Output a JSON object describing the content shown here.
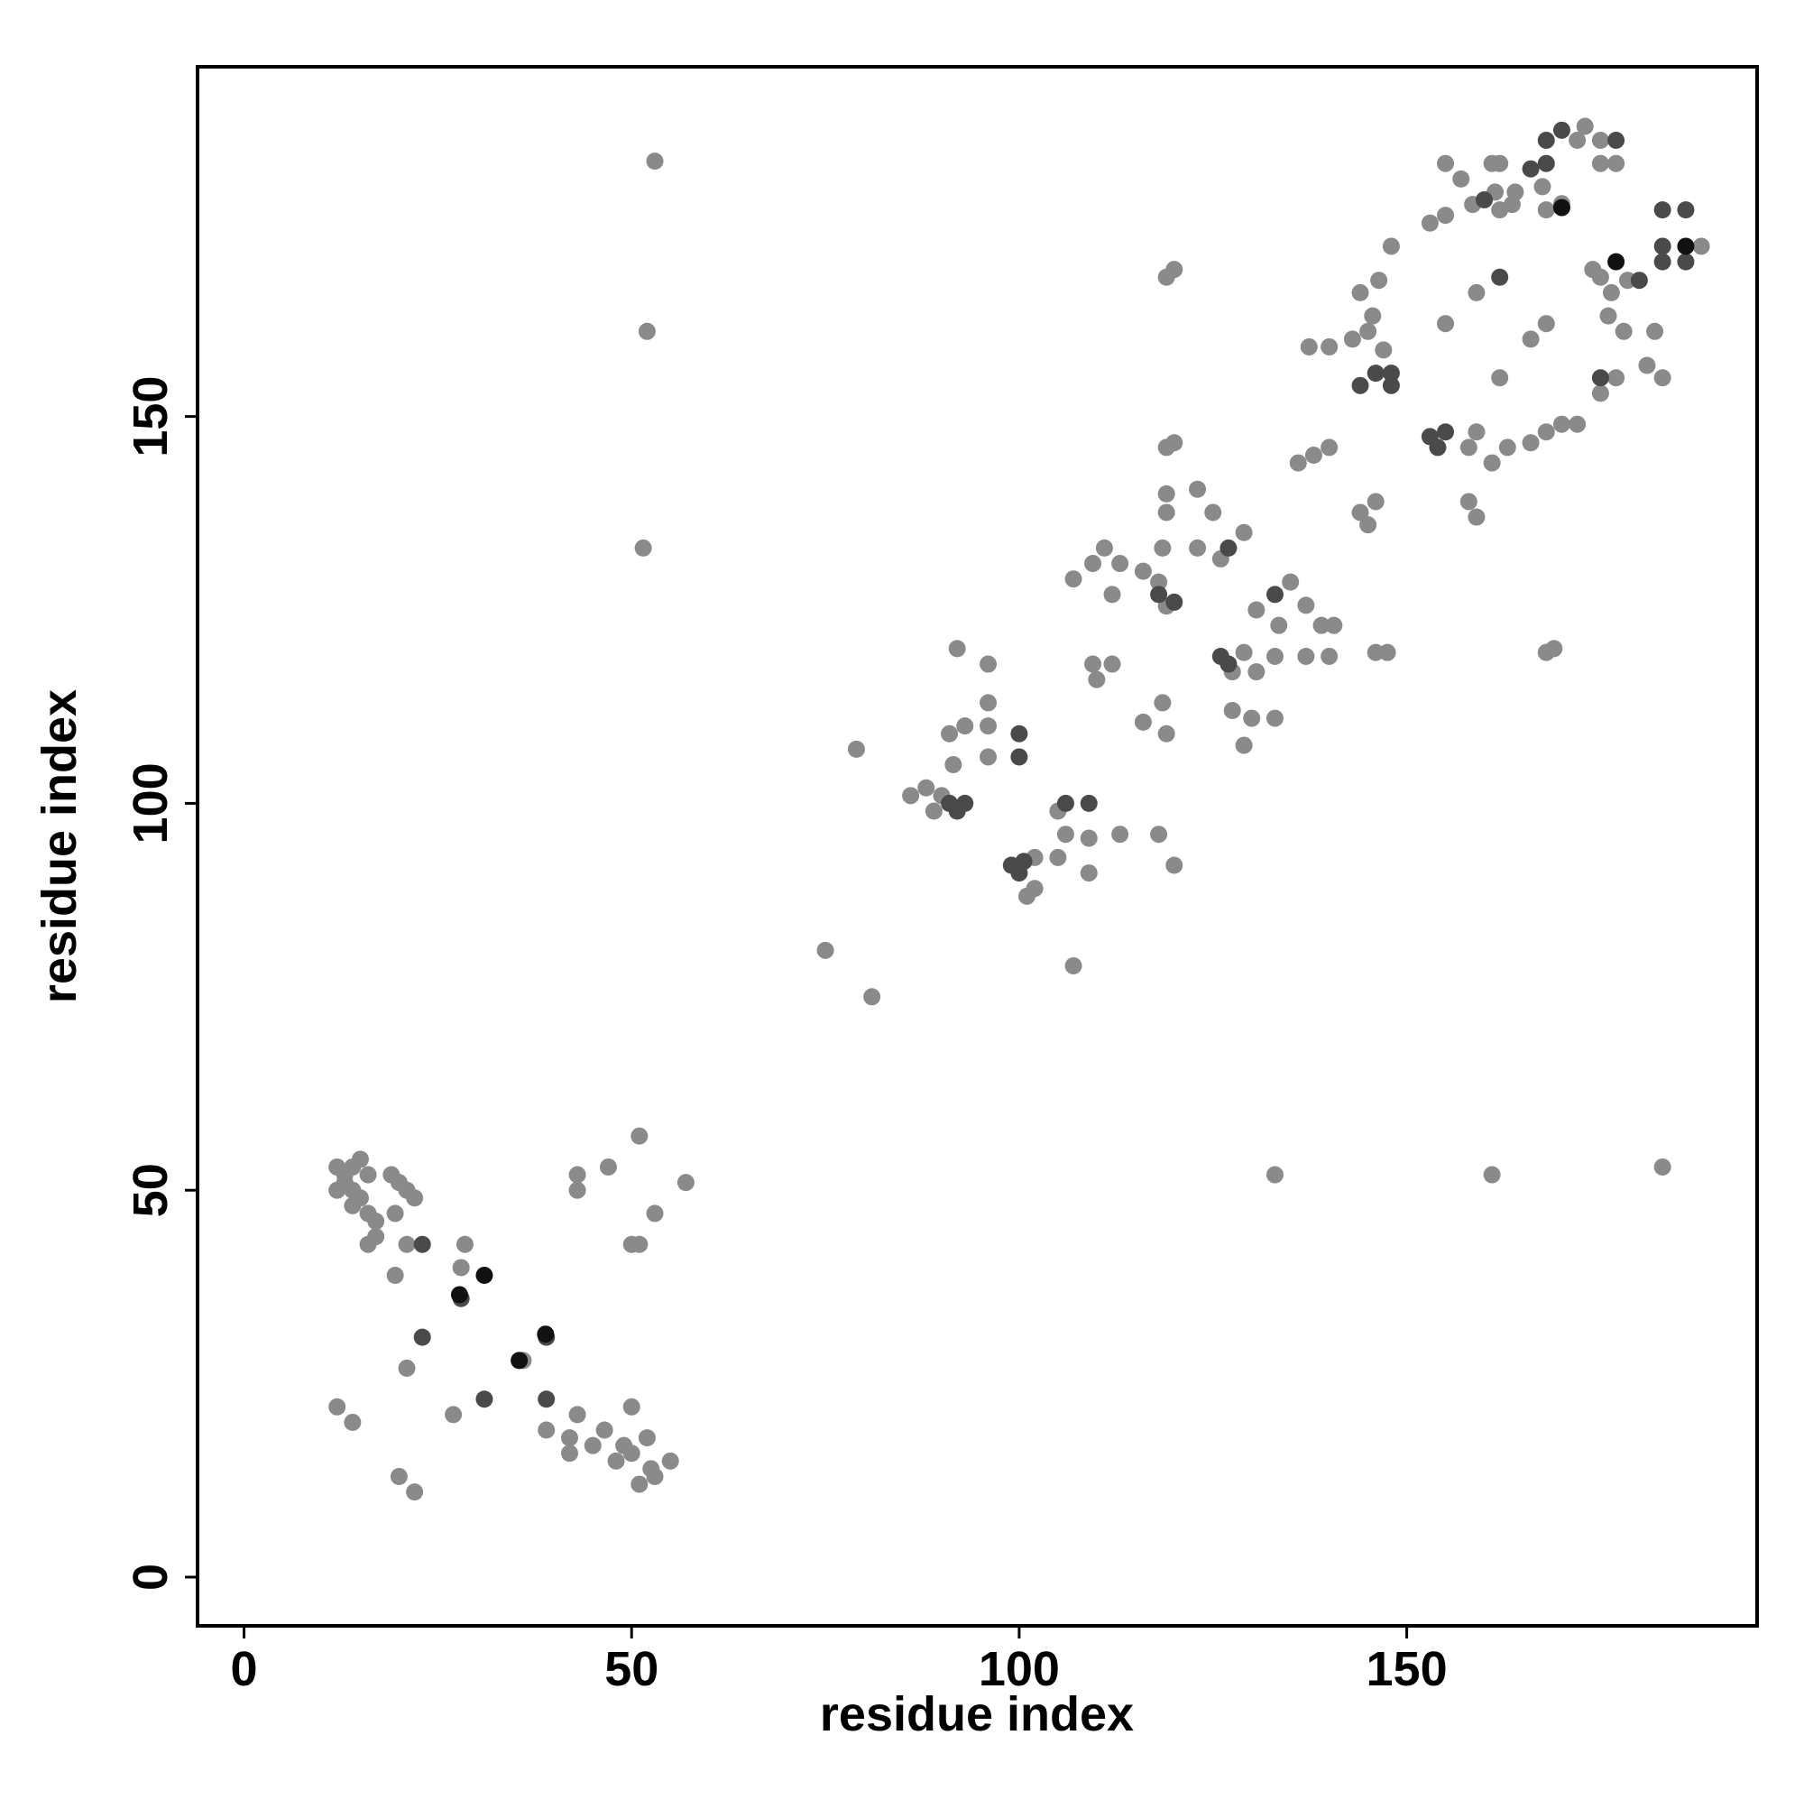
{
  "chart_data": {
    "type": "scatter",
    "x_label": "residue index",
    "y_label": "residue index",
    "xlim": [
      -6,
      195.2
    ],
    "ylim": [
      -6.3,
      195.2
    ],
    "xticks": [
      0,
      50,
      100,
      150
    ],
    "yticks": [
      0,
      50,
      100,
      150
    ],
    "series": [
      {
        "color": "#8a8a8a",
        "x": [
          12,
          13,
          13,
          14,
          12,
          14,
          15,
          16,
          15,
          14,
          16,
          17,
          17,
          16,
          19,
          20,
          21,
          22,
          19.5,
          21,
          19.5,
          28.5,
          28,
          36,
          21,
          27,
          39,
          43,
          42,
          46.5,
          50,
          50,
          52.5,
          55,
          51,
          20,
          22,
          12,
          14,
          43,
          43,
          47,
          51,
          51,
          53,
          57,
          50,
          48,
          49,
          52,
          53,
          45,
          42,
          53,
          52,
          51.5,
          75,
          81,
          79,
          107,
          133,
          161,
          183,
          86,
          88,
          89,
          90,
          91,
          93,
          96,
          91.5,
          96,
          96,
          96,
          92,
          102,
          101,
          102,
          105,
          105,
          106,
          109,
          109,
          113,
          118,
          120,
          109.5,
          112,
          110,
          107,
          109.5,
          111,
          113,
          112,
          116,
          118,
          119,
          118.5,
          116,
          118.5,
          119,
          119,
          119,
          119,
          120,
          119,
          120,
          123,
          125,
          126,
          129,
          123,
          127.5,
          129,
          130.6,
          133,
          127.5,
          130,
          133,
          129,
          130.6,
          135,
          137,
          139,
          140.6,
          137,
          140,
          133.5,
          136,
          138,
          140,
          144,
          146,
          145,
          146,
          147.5,
          137.4,
          140,
          143,
          145,
          147,
          145.6,
          144,
          146.4,
          148,
          153,
          155,
          155,
          157,
          155,
          159,
          162,
          158,
          159,
          161,
          163,
          158,
          159,
          166,
          168,
          170,
          172,
          168,
          169,
          161,
          162,
          162,
          164,
          167.5,
          168,
          172,
          173,
          175,
          175,
          177,
          174,
          176.4,
          178.5,
          176,
          178,
          182,
          181,
          183,
          175,
          177,
          168,
          166,
          163.6,
          161.4,
          158.5,
          188,
          170,
          175
        ],
        "values": [
          53,
          52,
          51,
          50,
          50,
          53,
          54,
          52,
          49,
          48,
          47,
          46,
          44,
          43,
          52,
          51,
          50,
          49,
          47,
          43,
          39,
          43,
          40,
          28,
          27,
          21,
          19,
          21,
          16,
          19,
          22,
          16,
          14,
          15,
          12,
          13,
          11,
          22,
          20,
          52,
          50,
          53,
          57,
          43,
          47,
          51,
          43,
          15,
          17,
          18,
          13,
          17,
          18,
          183,
          161,
          133,
          81,
          75,
          107,
          79,
          52,
          52,
          53,
          101,
          102,
          99,
          101,
          109,
          110,
          110,
          105,
          106,
          113,
          118,
          120,
          89,
          88,
          93,
          93,
          99,
          96,
          95.5,
          91,
          96,
          96,
          92,
          118,
          118,
          116,
          129,
          131,
          133,
          131,
          127,
          130,
          128.6,
          125.5,
          133,
          110.5,
          113,
          109,
          140,
          137.6,
          146,
          146.6,
          168,
          169,
          140.6,
          137.6,
          131.6,
          135,
          133,
          117,
          119.5,
          117,
          119,
          112,
          111,
          111,
          107.5,
          125,
          128.6,
          125.6,
          123,
          123,
          119,
          119,
          123,
          144,
          145,
          146,
          137.6,
          139,
          136,
          119.5,
          119.5,
          159,
          159,
          160,
          161,
          158.6,
          163,
          166,
          167.6,
          172,
          175,
          176,
          182.7,
          180.7,
          162,
          166,
          155,
          146,
          148,
          144,
          146,
          139,
          137,
          146.6,
          148,
          149,
          149,
          119.5,
          120,
          182.7,
          182.7,
          176.7,
          179,
          179.7,
          176.7,
          185.7,
          187.5,
          185.7,
          182.7,
          182.7,
          169,
          166,
          167.6,
          163,
          161,
          161,
          156.6,
          155,
          153,
          155,
          162,
          160,
          177.4,
          179,
          177.4,
          172,
          177.5,
          168
        ]
      },
      {
        "color": "#4a4a4a",
        "x": [
          28,
          23,
          39,
          31,
          39,
          23,
          91,
          93,
          92,
          100,
          100,
          99,
          100.6,
          100,
          106,
          109,
          120,
          118,
          127,
          126,
          127,
          133,
          144,
          146,
          148,
          148,
          153,
          155,
          154,
          162,
          160,
          168,
          168,
          170,
          177,
          180,
          175,
          183,
          183,
          186,
          186,
          183,
          166
        ],
        "values": [
          36,
          31,
          31,
          23,
          23,
          43,
          100,
          100,
          99,
          109,
          106,
          92,
          92.5,
          91,
          100,
          100,
          126,
          127,
          133,
          119,
          118,
          127,
          154,
          155.6,
          154,
          155.6,
          147.4,
          148,
          146,
          168,
          178,
          182.7,
          185.7,
          187,
          185.7,
          167.6,
          155,
          172,
          176.7,
          176.7,
          170,
          170,
          182
        ]
      },
      {
        "color": "#111111",
        "x": [
          31,
          27.8,
          35.5,
          38.9,
          170,
          177,
          186
        ],
        "values": [
          39,
          36.5,
          28,
          31.4,
          177,
          170,
          172
        ]
      }
    ]
  }
}
